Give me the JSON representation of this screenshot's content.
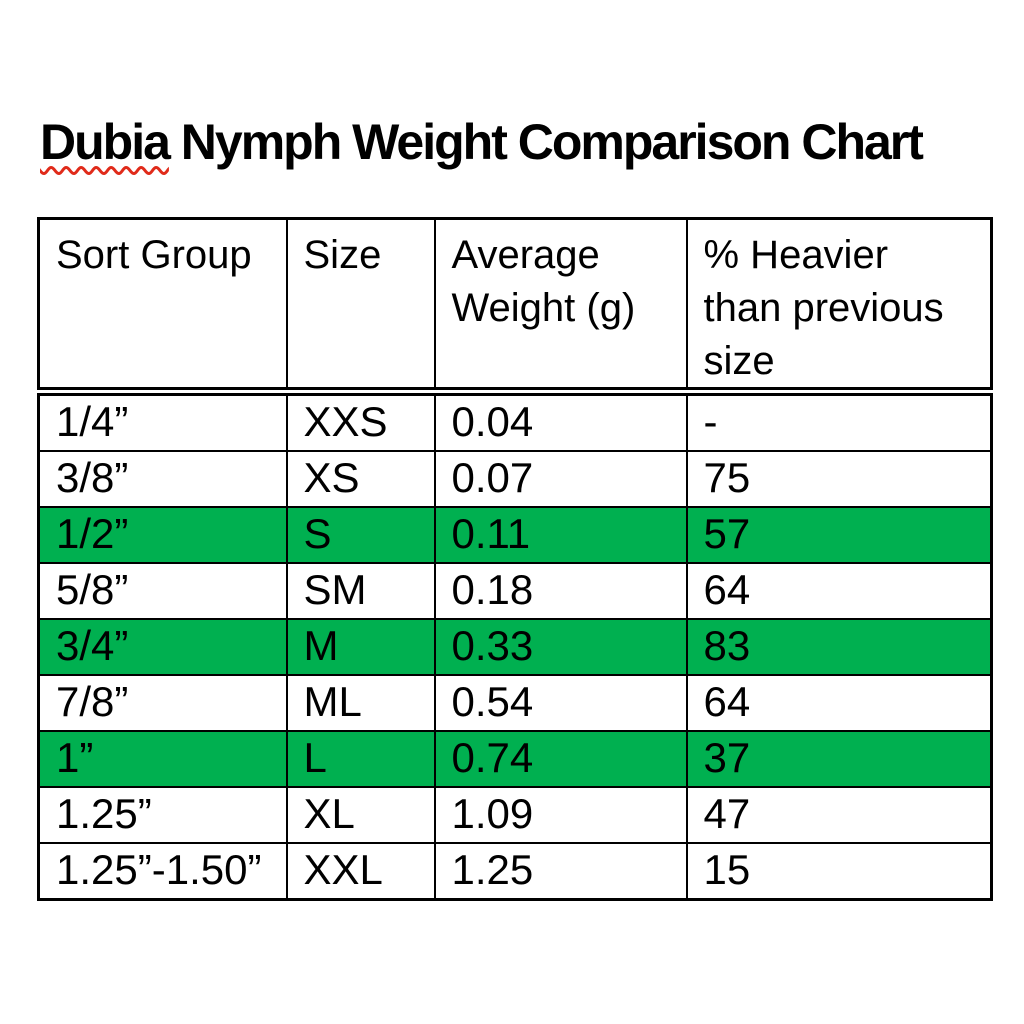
{
  "title": {
    "misspelled_word": "Dubia",
    "rest": " Nymph Weight Comparison Chart"
  },
  "colors": {
    "highlight_green": "#00B050",
    "spellcheck_red": "#E02B1A",
    "text_black": "#000000",
    "page_background": "#FFFFFF"
  },
  "table": {
    "headers": [
      "Sort Group",
      "Size",
      "Average\nWeight (g)",
      "% Heavier\nthan previous\nsize"
    ],
    "rows": [
      {
        "cells": [
          "1/4”",
          "XXS",
          "0.04",
          "-"
        ],
        "highlighted": false
      },
      {
        "cells": [
          "3/8”",
          "XS",
          "0.07",
          "75"
        ],
        "highlighted": false
      },
      {
        "cells": [
          "1/2”",
          "S",
          "0.11",
          "57"
        ],
        "highlighted": true
      },
      {
        "cells": [
          "5/8”",
          "SM",
          "0.18",
          "64"
        ],
        "highlighted": false
      },
      {
        "cells": [
          "3/4”",
          "M",
          "0.33",
          "83"
        ],
        "highlighted": true
      },
      {
        "cells": [
          "7/8”",
          "ML",
          "0.54",
          "64"
        ],
        "highlighted": false
      },
      {
        "cells": [
          "1”",
          "L",
          "0.74",
          "37"
        ],
        "highlighted": true
      },
      {
        "cells": [
          "1.25”",
          "XL",
          "1.09",
          "47"
        ],
        "highlighted": false
      },
      {
        "cells": [
          "1.25”-1.50”",
          "XXL",
          "1.25",
          "15"
        ],
        "highlighted": false
      }
    ]
  }
}
